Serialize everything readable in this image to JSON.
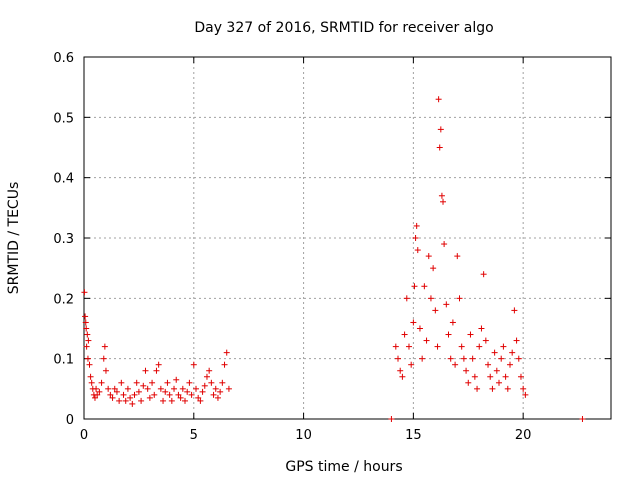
{
  "chart_data": {
    "type": "scatter",
    "title": "Day 327 of 2016, SRMTID for receiver algo",
    "xlabel": "GPS time / hours",
    "ylabel": "SRMTID / TECUs",
    "xlim": [
      0,
      24
    ],
    "ylim": [
      0,
      0.6
    ],
    "xticks": [
      0,
      5,
      10,
      15,
      20
    ],
    "yticks": [
      0,
      0.1,
      0.2,
      0.3,
      0.4,
      0.5,
      0.6
    ],
    "xtick_labels": [
      "0",
      "5",
      "10",
      "15",
      "20"
    ],
    "ytick_labels": [
      "0",
      "0.1",
      "0.2",
      "0.3",
      "0.4",
      "0.5",
      "0.6"
    ],
    "grid": true,
    "marker": "+",
    "color": "#e00000",
    "series": [
      {
        "name": "SRMTID",
        "points": [
          [
            0.02,
            0.21
          ],
          [
            0.05,
            0.17
          ],
          [
            0.08,
            0.16
          ],
          [
            0.1,
            0.15
          ],
          [
            0.12,
            0.12
          ],
          [
            0.15,
            0.14
          ],
          [
            0.18,
            0.1
          ],
          [
            0.2,
            0.13
          ],
          [
            0.25,
            0.09
          ],
          [
            0.3,
            0.07
          ],
          [
            0.35,
            0.06
          ],
          [
            0.4,
            0.05
          ],
          [
            0.45,
            0.04
          ],
          [
            0.5,
            0.035
          ],
          [
            0.55,
            0.05
          ],
          [
            0.6,
            0.04
          ],
          [
            0.7,
            0.045
          ],
          [
            0.8,
            0.06
          ],
          [
            0.9,
            0.1
          ],
          [
            0.95,
            0.12
          ],
          [
            1.0,
            0.08
          ],
          [
            1.1,
            0.05
          ],
          [
            1.2,
            0.04
          ],
          [
            1.3,
            0.035
          ],
          [
            1.4,
            0.05
          ],
          [
            1.5,
            0.045
          ],
          [
            1.6,
            0.03
          ],
          [
            1.7,
            0.06
          ],
          [
            1.8,
            0.04
          ],
          [
            1.9,
            0.03
          ],
          [
            2.0,
            0.05
          ],
          [
            2.1,
            0.035
          ],
          [
            2.2,
            0.025
          ],
          [
            2.3,
            0.04
          ],
          [
            2.4,
            0.06
          ],
          [
            2.5,
            0.045
          ],
          [
            2.6,
            0.03
          ],
          [
            2.7,
            0.055
          ],
          [
            2.8,
            0.08
          ],
          [
            2.9,
            0.05
          ],
          [
            3.0,
            0.035
          ],
          [
            3.1,
            0.06
          ],
          [
            3.2,
            0.04
          ],
          [
            3.3,
            0.08
          ],
          [
            3.4,
            0.09
          ],
          [
            3.5,
            0.05
          ],
          [
            3.6,
            0.03
          ],
          [
            3.7,
            0.045
          ],
          [
            3.8,
            0.06
          ],
          [
            3.9,
            0.04
          ],
          [
            4.0,
            0.03
          ],
          [
            4.1,
            0.05
          ],
          [
            4.2,
            0.065
          ],
          [
            4.3,
            0.04
          ],
          [
            4.4,
            0.035
          ],
          [
            4.5,
            0.05
          ],
          [
            4.6,
            0.03
          ],
          [
            4.7,
            0.045
          ],
          [
            4.8,
            0.06
          ],
          [
            4.9,
            0.04
          ],
          [
            5.0,
            0.09
          ],
          [
            5.1,
            0.05
          ],
          [
            5.2,
            0.035
          ],
          [
            5.3,
            0.03
          ],
          [
            5.4,
            0.045
          ],
          [
            5.5,
            0.055
          ],
          [
            5.6,
            0.07
          ],
          [
            5.7,
            0.08
          ],
          [
            5.8,
            0.06
          ],
          [
            5.9,
            0.04
          ],
          [
            6.0,
            0.05
          ],
          [
            6.1,
            0.035
          ],
          [
            6.2,
            0.045
          ],
          [
            6.3,
            0.06
          ],
          [
            6.4,
            0.09
          ],
          [
            6.5,
            0.11
          ],
          [
            6.6,
            0.05
          ],
          [
            14.0,
            0.0
          ],
          [
            14.2,
            0.12
          ],
          [
            14.3,
            0.1
          ],
          [
            14.4,
            0.08
          ],
          [
            14.5,
            0.07
          ],
          [
            14.6,
            0.14
          ],
          [
            14.7,
            0.2
          ],
          [
            14.8,
            0.12
          ],
          [
            14.9,
            0.09
          ],
          [
            15.0,
            0.16
          ],
          [
            15.05,
            0.22
          ],
          [
            15.1,
            0.3
          ],
          [
            15.15,
            0.32
          ],
          [
            15.2,
            0.28
          ],
          [
            15.3,
            0.15
          ],
          [
            15.4,
            0.1
          ],
          [
            15.5,
            0.22
          ],
          [
            15.6,
            0.13
          ],
          [
            15.7,
            0.27
          ],
          [
            15.8,
            0.2
          ],
          [
            15.9,
            0.25
          ],
          [
            16.0,
            0.18
          ],
          [
            16.1,
            0.12
          ],
          [
            16.15,
            0.53
          ],
          [
            16.2,
            0.45
          ],
          [
            16.25,
            0.48
          ],
          [
            16.3,
            0.37
          ],
          [
            16.35,
            0.36
          ],
          [
            16.4,
            0.29
          ],
          [
            16.5,
            0.19
          ],
          [
            16.6,
            0.14
          ],
          [
            16.7,
            0.1
          ],
          [
            16.8,
            0.16
          ],
          [
            16.9,
            0.09
          ],
          [
            17.0,
            0.27
          ],
          [
            17.1,
            0.2
          ],
          [
            17.2,
            0.12
          ],
          [
            17.3,
            0.1
          ],
          [
            17.4,
            0.08
          ],
          [
            17.5,
            0.06
          ],
          [
            17.6,
            0.14
          ],
          [
            17.7,
            0.1
          ],
          [
            17.8,
            0.07
          ],
          [
            17.9,
            0.05
          ],
          [
            18.0,
            0.12
          ],
          [
            18.1,
            0.15
          ],
          [
            18.2,
            0.24
          ],
          [
            18.3,
            0.13
          ],
          [
            18.4,
            0.09
          ],
          [
            18.5,
            0.07
          ],
          [
            18.6,
            0.05
          ],
          [
            18.7,
            0.11
          ],
          [
            18.8,
            0.08
          ],
          [
            18.9,
            0.06
          ],
          [
            19.0,
            0.1
          ],
          [
            19.1,
            0.12
          ],
          [
            19.2,
            0.07
          ],
          [
            19.3,
            0.05
          ],
          [
            19.4,
            0.09
          ],
          [
            19.5,
            0.11
          ],
          [
            19.6,
            0.18
          ],
          [
            19.7,
            0.13
          ],
          [
            19.8,
            0.1
          ],
          [
            19.9,
            0.07
          ],
          [
            20.0,
            0.05
          ],
          [
            20.1,
            0.04
          ],
          [
            22.7,
            0.0
          ]
        ]
      }
    ]
  }
}
